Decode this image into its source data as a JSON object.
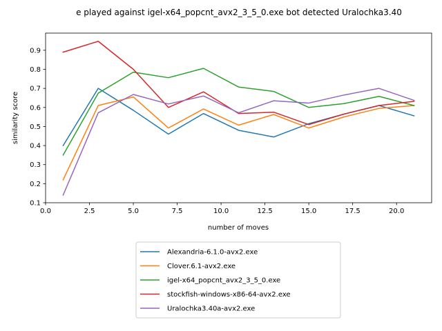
{
  "chart_data": {
    "type": "line",
    "title": "e played against igel-x64_popcnt_avx2_3_5_0.exe bot detected Uralochka3.40",
    "xlabel": "number of moves",
    "ylabel": "similarity score",
    "xlim": [
      0,
      22.0
    ],
    "ylim": [
      0.1,
      0.99
    ],
    "xticks": [
      0.0,
      2.5,
      5.0,
      7.5,
      10.0,
      12.5,
      15.0,
      17.5,
      20.0
    ],
    "xtick_labels": [
      "0.0",
      "2.5",
      "5.0",
      "7.5",
      "10.0",
      "12.5",
      "15.0",
      "17.5",
      "20.0"
    ],
    "yticks": [
      0.1,
      0.2,
      0.3,
      0.4,
      0.5,
      0.6,
      0.7,
      0.8,
      0.9
    ],
    "ytick_labels": [
      "0.1",
      "0.2",
      "0.3",
      "0.4",
      "0.5",
      "0.6",
      "0.7",
      "0.8",
      "0.9"
    ],
    "grid": false,
    "legend_placement": "below",
    "x": [
      1,
      3,
      5,
      7,
      9,
      11,
      13,
      15,
      17,
      19,
      21
    ],
    "series": [
      {
        "name": "Alexandria-6.1.0-avx2.exe",
        "color": "#1f77b4",
        "values": [
          0.4,
          0.7,
          0.585,
          0.46,
          0.568,
          0.48,
          0.445,
          0.515,
          0.565,
          0.61,
          0.556
        ]
      },
      {
        "name": "Clover.6.1-avx2.exe",
        "color": "#ff7f0e",
        "values": [
          0.22,
          0.61,
          0.655,
          0.492,
          0.592,
          0.507,
          0.563,
          0.492,
          0.55,
          0.595,
          0.61
        ]
      },
      {
        "name": "igel-x64_popcnt_avx2_3_5_0.exe",
        "color": "#2ca02c",
        "values": [
          0.35,
          0.675,
          0.785,
          0.756,
          0.805,
          0.707,
          0.684,
          0.6,
          0.62,
          0.658,
          0.61
        ]
      },
      {
        "name": "stockfish-windows-x86-64-avx2.exe",
        "color": "#d62728",
        "values": [
          0.89,
          0.947,
          0.8,
          0.6,
          0.682,
          0.568,
          0.575,
          0.51,
          0.565,
          0.61,
          0.632
        ]
      },
      {
        "name": "Uralochka3.40a-avx2.exe",
        "color": "#9467bd",
        "values": [
          0.14,
          0.572,
          0.668,
          0.618,
          0.66,
          0.572,
          0.635,
          0.623,
          0.665,
          0.7,
          0.637
        ]
      }
    ]
  }
}
